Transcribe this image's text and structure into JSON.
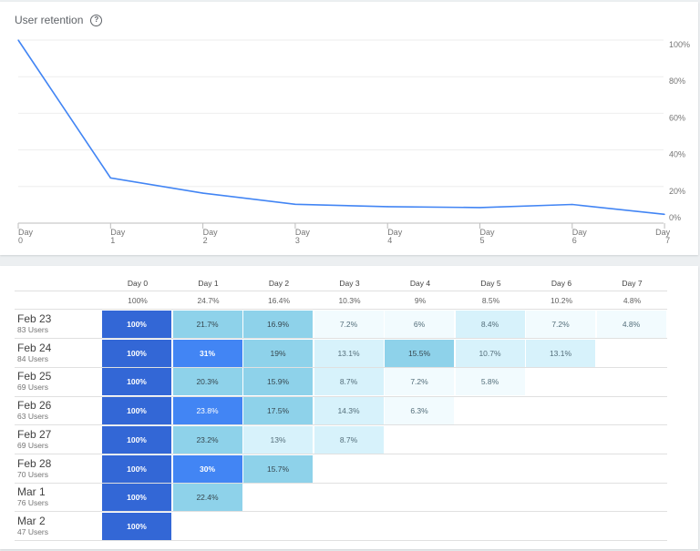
{
  "header": {
    "title": "User retention",
    "help_icon": "help-circle-icon"
  },
  "chart_data": {
    "type": "line",
    "x": [
      "Day 0",
      "Day 1",
      "Day 2",
      "Day 3",
      "Day 4",
      "Day 5",
      "Day 6",
      "Day 7"
    ],
    "x_tick_labels": [
      [
        "Day",
        "0"
      ],
      [
        "Day",
        "1"
      ],
      [
        "Day",
        "2"
      ],
      [
        "Day",
        "3"
      ],
      [
        "Day",
        "4"
      ],
      [
        "Day",
        "5"
      ],
      [
        "Day",
        "6"
      ],
      [
        "Day",
        "7"
      ]
    ],
    "series": [
      {
        "values": [
          100,
          24.7,
          16.4,
          10.3,
          9,
          8.5,
          10.2,
          4.8
        ],
        "color": "#4285f4"
      }
    ],
    "y_ticks": [
      "0%",
      "20%",
      "40%",
      "60%",
      "80%",
      "100%"
    ],
    "ylim": [
      0,
      100
    ],
    "grid": true,
    "y_axis_position": "right"
  },
  "cohort_table": {
    "days": [
      "Day 0",
      "Day 1",
      "Day 2",
      "Day 3",
      "Day 4",
      "Day 5",
      "Day 6",
      "Day 7"
    ],
    "averages": [
      "100%",
      "24.7%",
      "16.4%",
      "10.3%",
      "9%",
      "8.5%",
      "10.2%",
      "4.8%"
    ],
    "rows": [
      {
        "date": "Feb 23",
        "users": "83 Users",
        "values": [
          "100%",
          "21.7%",
          "16.9%",
          "7.2%",
          "6%",
          "8.4%",
          "7.2%",
          "4.8%"
        ]
      },
      {
        "date": "Feb 24",
        "users": "84 Users",
        "values": [
          "100%",
          "31%",
          "19%",
          "13.1%",
          "15.5%",
          "10.7%",
          "13.1%"
        ]
      },
      {
        "date": "Feb 25",
        "users": "69 Users",
        "values": [
          "100%",
          "20.3%",
          "15.9%",
          "8.7%",
          "7.2%",
          "5.8%"
        ]
      },
      {
        "date": "Feb 26",
        "users": "63 Users",
        "values": [
          "100%",
          "23.8%",
          "17.5%",
          "14.3%",
          "6.3%"
        ]
      },
      {
        "date": "Feb 27",
        "users": "69 Users",
        "values": [
          "100%",
          "23.2%",
          "13%",
          "8.7%"
        ]
      },
      {
        "date": "Feb 28",
        "users": "70 Users",
        "values": [
          "100%",
          "30%",
          "15.7%"
        ]
      },
      {
        "date": "Mar 1",
        "users": "76 Users",
        "values": [
          "100%",
          "22.4%"
        ]
      },
      {
        "date": "Mar 2",
        "users": "47 Users",
        "values": [
          "100%"
        ]
      }
    ],
    "colors": {
      "day0": "#3367d6",
      "strong": "#4285f4",
      "medium": "#8ed2ea",
      "light": "#d7f2fb",
      "faint": "#f2fbfe"
    }
  }
}
